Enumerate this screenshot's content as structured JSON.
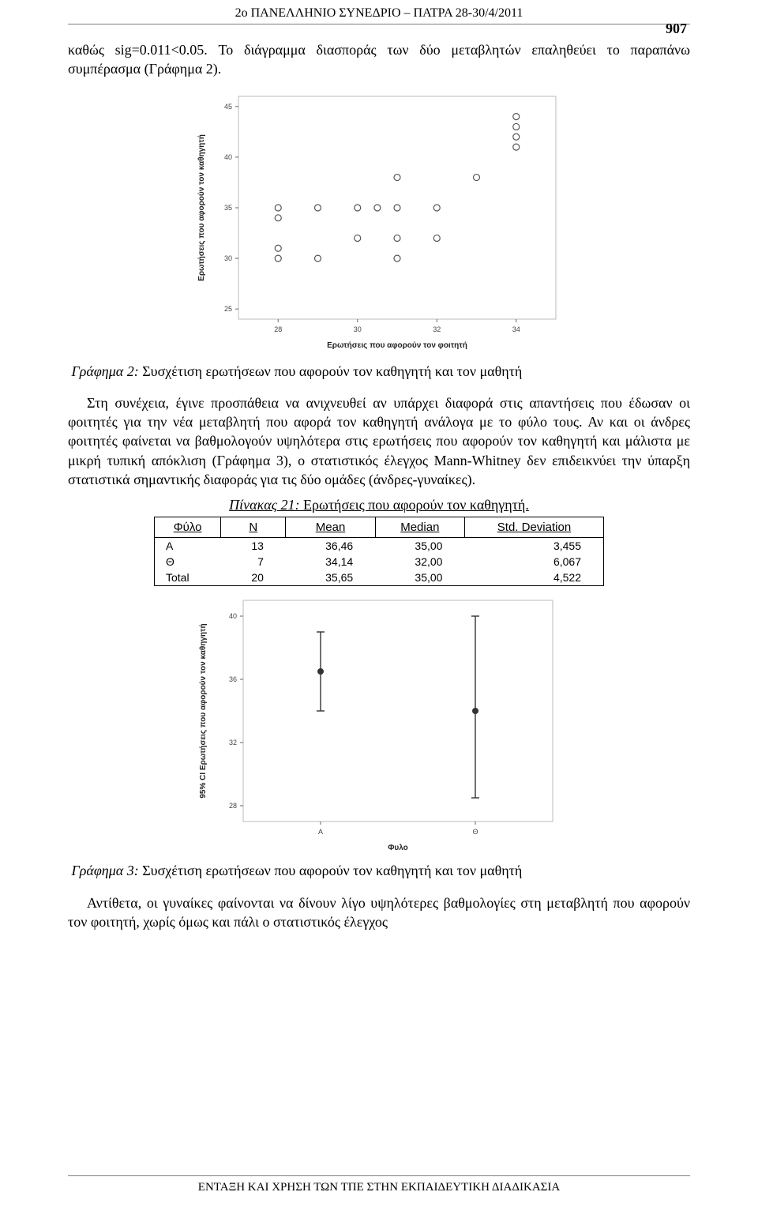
{
  "header": "2ο ΠΑΝΕΛΛΗΝΙΟ ΣΥΝΕΔΡΙΟ – ΠΑΤΡΑ 28-30/4/2011",
  "page_number": "907",
  "para1": "καθώς sig=0.011<0.05. Το διάγραμμα διασποράς των δύο μεταβλητών επαληθεύει το παραπάνω συμπέρασμα (Γράφημα 2).",
  "caption2_prefix": "Γράφημα 2:",
  "caption2_text": " Συσχέτιση ερωτήσεων που αφορούν τον καθηγητή και τον μαθητή",
  "para2": "Στη συνέχεια, έγινε προσπάθεια να ανιχνευθεί αν υπάρχει διαφορά στις απαντήσεις που έδωσαν οι φοιτητές για την νέα μεταβλητή που αφορά τον καθηγητή ανάλογα με το φύλο τους. Αν και οι άνδρες φοιτητές φαίνεται να βαθμολογούν υψηλότερα στις ερωτήσεις που αφορούν τον καθηγητή και μάλιστα με μικρή τυπική απόκλιση (Γράφημα 3), ο στατιστικός έλεγχος Mann-Whitney δεν επιδεικνύει την ύπαρξη στατιστικά σημαντικής διαφοράς για τις δύο ομάδες (άνδρες-γυναίκες).",
  "table_title_prefix": "Πίνακας 21:",
  "table_title_text": " Ερωτήσεις που αφορούν τον καθηγητή.",
  "table": {
    "columns": [
      "Φύλο",
      "N",
      "Mean",
      "Median",
      "Std. Deviation"
    ],
    "rows": [
      [
        "Α",
        "13",
        "36,46",
        "35,00",
        "3,455"
      ],
      [
        "Θ",
        "7",
        "34,14",
        "32,00",
        "6,067"
      ],
      [
        "Total",
        "20",
        "35,65",
        "35,00",
        "4,522"
      ]
    ],
    "col_align": [
      "left",
      "right",
      "right",
      "right",
      "right"
    ],
    "header_underline": true,
    "border_color": "#000000"
  },
  "caption3_prefix": "Γράφημα 3:",
  "caption3_text": " Συσχέτιση ερωτήσεων που αφορούν τον καθηγητή και τον μαθητή",
  "para3": "Αντίθετα, οι γυναίκες φαίνονται να δίνουν λίγο υψηλότερες βαθμολογίες στη μεταβλητή που αφορούν τον φοιτητή, χωρίς όμως και πάλι ο στατιστικός έλεγχος",
  "footer": "ΕΝΤΑΞΗ ΚΑΙ ΧΡΗΣΗ ΤΩΝ ΤΠΕ ΣΤΗΝ ΕΚΠΑΙΔΕΥΤΙΚΗ ΔΙΑΔΙΚΑΣΙΑ",
  "chart1": {
    "type": "scatter",
    "xlabel": "Ερωτήσεις που αφορούν τον φοιτητή",
    "ylabel": "Ερωτήσεις που αφορούν τον καθηγητή",
    "label_fontsize": 10,
    "tick_fontsize": 9,
    "xlim": [
      27,
      35
    ],
    "ylim": [
      24,
      46
    ],
    "xticks": [
      28,
      30,
      32,
      34
    ],
    "yticks": [
      25,
      30,
      35,
      40,
      45
    ],
    "points": [
      {
        "x": 28,
        "y": 34
      },
      {
        "x": 28,
        "y": 35
      },
      {
        "x": 28,
        "y": 30
      },
      {
        "x": 28,
        "y": 31
      },
      {
        "x": 29,
        "y": 30
      },
      {
        "x": 29,
        "y": 35
      },
      {
        "x": 30,
        "y": 35
      },
      {
        "x": 30,
        "y": 32
      },
      {
        "x": 30.5,
        "y": 35
      },
      {
        "x": 31,
        "y": 32
      },
      {
        "x": 31,
        "y": 35
      },
      {
        "x": 31,
        "y": 38
      },
      {
        "x": 31,
        "y": 30
      },
      {
        "x": 32,
        "y": 32
      },
      {
        "x": 32,
        "y": 35
      },
      {
        "x": 33,
        "y": 38
      },
      {
        "x": 34,
        "y": 41
      },
      {
        "x": 34,
        "y": 42
      },
      {
        "x": 34,
        "y": 43
      },
      {
        "x": 34,
        "y": 44
      }
    ],
    "marker_style": "circle-open",
    "marker_color": "#555555",
    "marker_size": 4,
    "bg_color": "#ffffff",
    "plot_border": "#bbbbbb",
    "plot_border_width": 1,
    "grid": false
  },
  "chart2": {
    "type": "errorbar",
    "xlabel": "Φυλο",
    "ylabel": "95% CI Ερωτήσεις που αφορούν τον καθηγητή",
    "label_fontsize": 10,
    "tick_fontsize": 9,
    "xcategories": [
      "Α",
      "Θ"
    ],
    "ylim": [
      27,
      41
    ],
    "yticks": [
      28,
      32,
      36,
      40
    ],
    "series": [
      {
        "x": "Α",
        "mean": 36.5,
        "low": 34.0,
        "high": 39.0
      },
      {
        "x": "Θ",
        "mean": 34.0,
        "low": 28.5,
        "high": 40.0
      }
    ],
    "line_color": "#333333",
    "line_width": 1.4,
    "cap_width": 10,
    "mean_marker": "circle",
    "mean_marker_size": 4,
    "bg_color": "#ffffff",
    "plot_border": "#bbbbbb",
    "plot_border_width": 1,
    "grid": false
  }
}
